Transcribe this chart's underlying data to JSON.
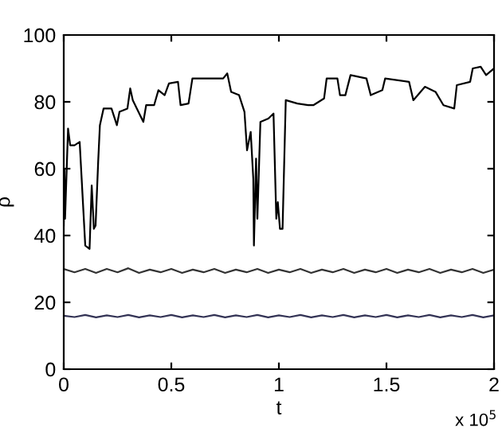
{
  "chart_data": {
    "type": "line",
    "xlabel": "t",
    "ylabel": "ρ",
    "annotations": [
      "x 10$^{5}$"
    ],
    "xlim": [
      0,
      2
    ],
    "xticks": [
      0,
      0.5,
      1,
      1.5,
      2
    ],
    "ylim": [
      0,
      100
    ],
    "yticks": [
      0,
      20,
      40,
      60,
      80,
      100
    ],
    "grid": false,
    "legend": false,
    "marker": "none",
    "line_style": "solid",
    "series": [
      {
        "color": "#000000",
        "x": [
          0,
          0.003,
          0.006,
          0.02,
          0.03,
          0.05,
          0.074,
          0.1,
          0.12,
          0.13,
          0.14,
          0.148,
          0.16,
          0.168,
          0.185,
          0.222,
          0.247,
          0.259,
          0.296,
          0.309,
          0.321,
          0.37,
          0.383,
          0.42,
          0.44,
          0.469,
          0.489,
          0.531,
          0.543,
          0.58,
          0.598,
          0.642,
          0.691,
          0.741,
          0.76,
          0.778,
          0.815,
          0.84,
          0.852,
          0.869,
          0.881,
          0.884,
          0.894,
          0.9,
          0.914,
          0.951,
          0.975,
          0.988,
          0.995,
          1.005,
          1.017,
          1.032,
          1.086,
          1.136,
          1.16,
          1.21,
          1.222,
          1.272,
          1.284,
          1.309,
          1.333,
          1.407,
          1.427,
          1.481,
          1.494,
          1.605,
          1.625,
          1.679,
          1.728,
          1.765,
          1.815,
          1.827,
          1.889,
          1.901,
          1.938,
          1.963,
          2.0
        ],
        "values": [
          43,
          60,
          45,
          72,
          67,
          67,
          68,
          37,
          36,
          55,
          42,
          43,
          62,
          73,
          78,
          78,
          73,
          77,
          78,
          84,
          80.5,
          74,
          79,
          79,
          83.5,
          82,
          85.5,
          86,
          79,
          79.5,
          87,
          87,
          87,
          87,
          88.5,
          83,
          82,
          77,
          65.5,
          71,
          57,
          37,
          63,
          45,
          74,
          75,
          76.5,
          45,
          50,
          42,
          42,
          80.5,
          79.5,
          79,
          79,
          81,
          87,
          87,
          82,
          82,
          88,
          87,
          82,
          83.5,
          87,
          86,
          80.5,
          84.5,
          83,
          79,
          78,
          85,
          86,
          90,
          90.5,
          88,
          90
        ]
      },
      {
        "color": "#333333",
        "x": [
          0,
          0.05,
          0.1,
          0.15,
          0.2,
          0.25,
          0.3,
          0.35,
          0.4,
          0.45,
          0.5,
          0.55,
          0.6,
          0.65,
          0.7,
          0.75,
          0.8,
          0.85,
          0.9,
          0.95,
          1.0,
          1.05,
          1.1,
          1.15,
          1.2,
          1.25,
          1.3,
          1.35,
          1.4,
          1.45,
          1.5,
          1.55,
          1.6,
          1.65,
          1.7,
          1.75,
          1.8,
          1.85,
          1.9,
          1.95,
          2.0
        ],
        "values": [
          30,
          29,
          30,
          28.8,
          30,
          29,
          30.2,
          28.8,
          29.8,
          29,
          30,
          28.8,
          29.8,
          29,
          30,
          28.8,
          29.8,
          29,
          30,
          28.8,
          29.8,
          29,
          30,
          28.8,
          29.8,
          29,
          30,
          28.8,
          29.8,
          29,
          30,
          28.8,
          29.8,
          29,
          30,
          28.8,
          29.8,
          29,
          30,
          28.8,
          29.8
        ]
      },
      {
        "color": "#333355",
        "x": [
          0,
          0.05,
          0.1,
          0.15,
          0.2,
          0.25,
          0.3,
          0.35,
          0.4,
          0.45,
          0.5,
          0.55,
          0.6,
          0.65,
          0.7,
          0.75,
          0.8,
          0.85,
          0.9,
          0.95,
          1.0,
          1.05,
          1.1,
          1.15,
          1.2,
          1.25,
          1.3,
          1.35,
          1.4,
          1.45,
          1.5,
          1.55,
          1.6,
          1.65,
          1.7,
          1.75,
          1.8,
          1.85,
          1.9,
          1.95,
          2.0
        ],
        "values": [
          16,
          15.6,
          16.2,
          15.5,
          16.1,
          15.6,
          16.2,
          15.5,
          16.1,
          15.6,
          16.2,
          15.5,
          16.1,
          15.6,
          16.2,
          15.5,
          16.1,
          15.6,
          16.2,
          15.5,
          16.1,
          15.6,
          16.2,
          15.5,
          16.1,
          15.6,
          16.2,
          15.5,
          16.1,
          15.6,
          16.2,
          15.5,
          16.1,
          15.6,
          16.2,
          15.5,
          16.1,
          15.6,
          16.2,
          15.5,
          16.1
        ]
      }
    ]
  }
}
